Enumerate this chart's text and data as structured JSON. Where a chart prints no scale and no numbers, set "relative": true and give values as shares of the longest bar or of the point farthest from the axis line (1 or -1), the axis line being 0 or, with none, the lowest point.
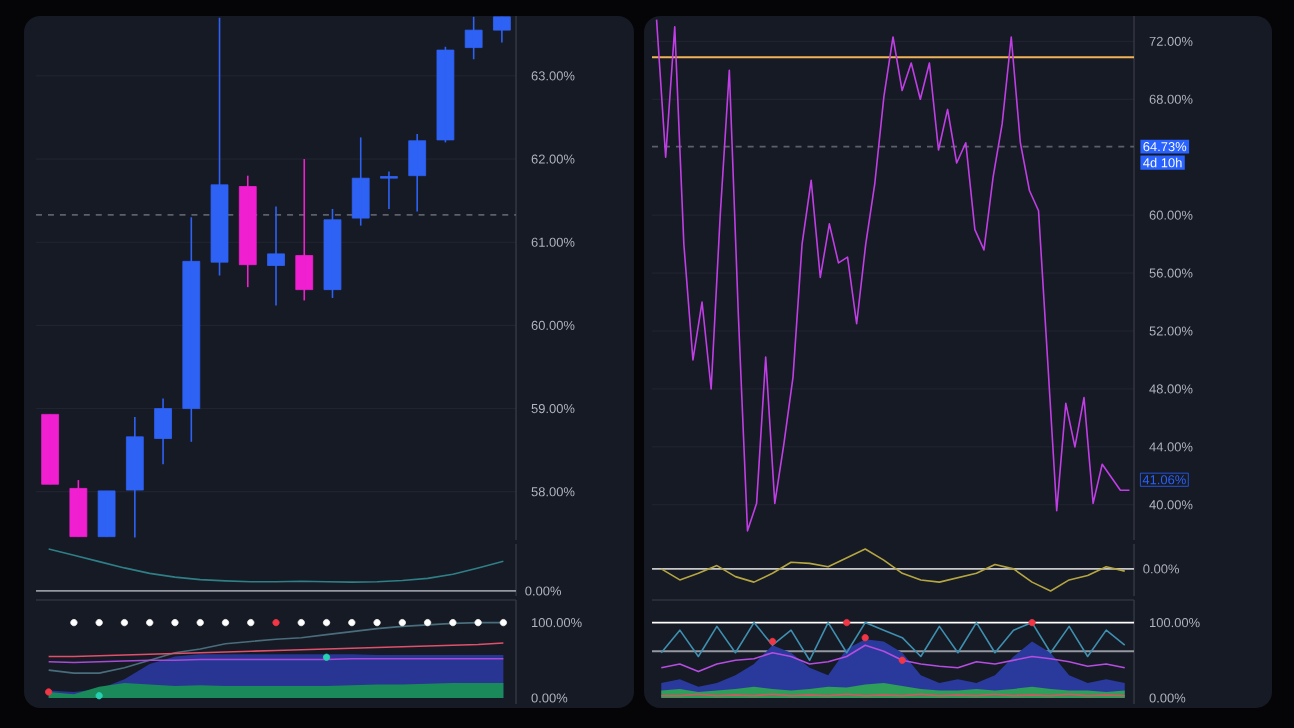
{
  "chart_data": [
    {
      "type": "candlestick",
      "categories": [
        null,
        null,
        null,
        null,
        null,
        null,
        null,
        null,
        null,
        null,
        null,
        null,
        null,
        null,
        null,
        null,
        null
      ],
      "ohlc": [
        [
          58.93,
          58.93,
          58.09,
          58.09
        ],
        [
          58.04,
          58.14,
          57.46,
          57.46
        ],
        [
          57.46,
          58.01,
          57.46,
          58.01
        ],
        [
          58.02,
          58.9,
          57.45,
          58.66
        ],
        [
          58.64,
          59.12,
          58.33,
          59.0
        ],
        [
          59.0,
          61.3,
          58.6,
          60.77
        ],
        [
          60.76,
          63.7,
          60.6,
          61.69
        ],
        [
          61.67,
          61.8,
          60.46,
          60.73
        ],
        [
          60.72,
          61.43,
          60.24,
          60.86
        ],
        [
          60.84,
          62.0,
          60.3,
          60.43
        ],
        [
          60.43,
          61.4,
          60.33,
          61.27
        ],
        [
          61.29,
          62.26,
          61.2,
          61.77
        ],
        [
          61.77,
          61.85,
          61.4,
          61.79
        ],
        [
          61.8,
          62.3,
          61.37,
          62.22
        ],
        [
          62.23,
          63.35,
          62.2,
          63.31
        ],
        [
          63.34,
          63.71,
          63.2,
          63.55
        ],
        [
          63.55,
          63.71,
          63.4,
          63.71
        ]
      ],
      "colors": [
        "#f01fd0",
        "#f01fd0",
        "#2e62f5",
        "#2e62f5",
        "#2e62f5",
        "#2e62f5",
        "#2e62f5",
        "#f01fd0",
        "#2e62f5",
        "#f01fd0",
        "#2e62f5",
        "#2e62f5",
        "#2e62f5",
        "#2e62f5",
        "#2e62f5",
        "#2e62f5",
        "#2e62f5"
      ],
      "ylim": [
        57.42,
        63.72
      ],
      "yticks": [
        {
          "value": 58,
          "label": "58.00%"
        },
        {
          "value": 59,
          "label": "59.00%"
        },
        {
          "value": 60,
          "label": "60.00%"
        },
        {
          "value": 61,
          "label": "61.00%"
        },
        {
          "value": 62,
          "label": "62.00%"
        },
        {
          "value": 63,
          "label": "63.00%"
        }
      ],
      "grid": "y",
      "ref_lines": [
        {
          "axis": "y",
          "value": 61.33,
          "line_style": "dashed",
          "color": "#5d606b"
        }
      ]
    },
    {
      "type": "line",
      "relative": true,
      "categories": [
        null,
        null,
        null,
        null,
        null,
        null,
        null,
        null,
        null,
        null,
        null,
        null,
        null,
        null,
        null,
        null,
        null,
        null,
        null
      ],
      "series": [
        {
          "color": "#2f7f86",
          "values": [
            1,
            0.85,
            0.7,
            0.55,
            0.42,
            0.33,
            0.27,
            0.24,
            0.22,
            0.22,
            0.23,
            0.22,
            0.21,
            0.22,
            0.25,
            0.3,
            0.4,
            0.55,
            0.71
          ]
        }
      ],
      "ref_lines": [
        {
          "axis": "y",
          "value": 0,
          "label": "0.00%",
          "color": "#9598a1"
        }
      ]
    },
    {
      "type": "line",
      "categories": [
        null,
        null,
        null,
        null,
        null,
        null,
        null,
        null,
        null,
        null,
        null,
        null,
        null,
        null,
        null,
        null,
        null,
        null,
        null
      ],
      "ylim": [
        -8,
        130
      ],
      "yticks": [
        {
          "value": 0,
          "label": "0.00%"
        },
        {
          "value": 100,
          "label": "100.00%"
        }
      ],
      "series": [
        {
          "type": "area",
          "color": "#283593",
          "values": [
            10,
            8,
            12,
            25,
            45,
            55,
            58,
            58,
            58,
            58,
            58,
            58,
            58,
            57,
            57,
            57,
            57,
            57,
            57
          ]
        },
        {
          "type": "area",
          "color": "#1b8a5a",
          "values": [
            8,
            5,
            15,
            20,
            18,
            16,
            17,
            16,
            16,
            16,
            16,
            16,
            17,
            18,
            18,
            19,
            20,
            20,
            20
          ]
        },
        {
          "color": "#4a6d7c",
          "values": [
            37,
            33,
            33,
            40,
            50,
            60,
            65,
            72,
            75,
            78,
            80,
            84,
            88,
            92,
            95,
            97,
            99,
            100,
            100
          ]
        },
        {
          "color": "#a64bd6",
          "values": [
            48,
            47,
            48,
            49,
            50,
            50,
            51,
            51,
            51,
            51,
            51,
            51,
            52,
            52,
            52,
            52,
            52,
            52,
            52
          ]
        },
        {
          "color": "#e0506a",
          "values": [
            55,
            55,
            56,
            57,
            58,
            59,
            60,
            61,
            62,
            63,
            64,
            65,
            66,
            67,
            68,
            69,
            70,
            71,
            73
          ]
        },
        {
          "type": "scatter",
          "marker": "circle",
          "color": "#ffffff",
          "values": [
            null,
            100,
            100,
            100,
            100,
            100,
            100,
            100,
            100,
            null,
            100,
            100,
            100,
            100,
            100,
            100,
            100,
            100,
            100
          ]
        },
        {
          "type": "scatter",
          "marker": "circle",
          "color": "#f23645",
          "values": [
            8,
            null,
            null,
            null,
            null,
            null,
            null,
            null,
            null,
            100,
            null,
            null,
            null,
            null,
            null,
            null,
            null,
            null,
            null
          ]
        },
        {
          "type": "scatter",
          "marker": "circle",
          "color": "#26d0b0",
          "values": [
            null,
            null,
            3,
            null,
            null,
            null,
            null,
            null,
            null,
            null,
            null,
            54,
            null,
            null,
            null,
            null,
            null,
            null,
            null
          ]
        }
      ]
    },
    {
      "type": "line",
      "categories": [
        null,
        null,
        null,
        null,
        null,
        null,
        null,
        null,
        null,
        null,
        null,
        null,
        null,
        null,
        null,
        null,
        null,
        null,
        null,
        null,
        null,
        null,
        null,
        null,
        null,
        null,
        null,
        null,
        null,
        null,
        null,
        null,
        null,
        null,
        null,
        null,
        null,
        null,
        null,
        null,
        null,
        null,
        null,
        null,
        null,
        null,
        null,
        null,
        null,
        null,
        null,
        null,
        null
      ],
      "series": [
        {
          "color": "#c13ee6",
          "values": [
            73.5,
            64,
            73,
            58,
            50,
            54,
            48,
            60,
            70,
            53,
            38.2,
            40.1,
            50.2,
            40.1,
            44.2,
            48.8,
            58,
            62.4,
            55.7,
            59.4,
            56.7,
            57.1,
            52.5,
            58,
            62.2,
            68.2,
            72.3,
            68.6,
            70.5,
            68,
            70.5,
            64.5,
            67.3,
            63.6,
            65,
            59,
            57.6,
            62.6,
            66.3,
            72.3,
            65,
            61.7,
            60.3,
            50,
            39.6,
            47,
            44,
            47.4,
            40.1,
            42.8,
            41.9,
            41,
            41
          ]
        }
      ],
      "ylim": [
        37.57,
        73.75
      ],
      "yticks": [
        {
          "value": 40,
          "label": "40.00%"
        },
        {
          "value": 44,
          "label": "44.00%"
        },
        {
          "value": 48,
          "label": "48.00%"
        },
        {
          "value": 52,
          "label": "52.00%"
        },
        {
          "value": 56,
          "label": "56.00%"
        },
        {
          "value": 60,
          "label": "60.00%"
        },
        {
          "value": 68,
          "label": "68.00%"
        },
        {
          "value": 72,
          "label": "72.00%"
        }
      ],
      "grid": "y",
      "ref_lines": [
        {
          "axis": "y",
          "value": 70.9,
          "color": "#f0b35a"
        },
        {
          "axis": "y",
          "value": 64.73,
          "label": "64.73%",
          "line_style": "dashed",
          "color": "#5d606b"
        }
      ],
      "annotations": [
        "4d 10h",
        "41.06%"
      ]
    },
    {
      "type": "line",
      "relative": true,
      "categories": [
        null,
        null,
        null,
        null,
        null,
        null,
        null,
        null,
        null,
        null,
        null,
        null,
        null,
        null,
        null,
        null,
        null,
        null,
        null,
        null,
        null,
        null,
        null,
        null,
        null,
        null
      ],
      "series": [
        {
          "color": "#b5a642",
          "values": [
            0,
            -0.5,
            -0.2,
            0.15,
            -0.35,
            -0.6,
            -0.2,
            0.3,
            0.25,
            0.1,
            0.5,
            0.9,
            0.4,
            -0.2,
            -0.5,
            -0.6,
            -0.4,
            -0.2,
            0.2,
            0,
            -0.6,
            -1,
            -0.5,
            -0.3,
            0.1,
            -0.1
          ]
        }
      ],
      "ref_lines": [
        {
          "axis": "y",
          "value": 0,
          "label": "0.00%",
          "color": "#c8c8c8"
        }
      ]
    },
    {
      "type": "line",
      "categories": [
        null,
        null,
        null,
        null,
        null,
        null,
        null,
        null,
        null,
        null,
        null,
        null,
        null,
        null,
        null,
        null,
        null,
        null,
        null,
        null,
        null,
        null,
        null,
        null,
        null,
        null
      ],
      "ylim": [
        -8,
        130
      ],
      "yticks": [
        {
          "value": 0,
          "label": "0.00%"
        },
        {
          "value": 100,
          "label": "100.00%"
        }
      ],
      "ref_lines": [
        {
          "axis": "y",
          "value": 100,
          "color": "#ffffff"
        },
        {
          "axis": "y",
          "value": 62,
          "color": "#9598a1"
        }
      ],
      "series": [
        {
          "type": "area",
          "color": "#2a3a9c",
          "values": [
            20,
            25,
            15,
            20,
            30,
            45,
            70,
            60,
            40,
            30,
            65,
            78,
            75,
            60,
            30,
            20,
            25,
            20,
            30,
            55,
            75,
            60,
            30,
            20,
            25,
            20
          ]
        },
        {
          "type": "area",
          "color": "#2e9e5a",
          "values": [
            10,
            12,
            8,
            10,
            12,
            15,
            12,
            10,
            12,
            15,
            14,
            18,
            20,
            16,
            12,
            10,
            10,
            12,
            10,
            12,
            15,
            12,
            10,
            10,
            8,
            10
          ]
        },
        {
          "color": "#3f8fb0",
          "values": [
            60,
            90,
            55,
            95,
            60,
            100,
            70,
            90,
            50,
            100,
            60,
            100,
            90,
            80,
            55,
            95,
            60,
            100,
            60,
            90,
            100,
            60,
            95,
            55,
            90,
            70
          ]
        },
        {
          "color": "#b44de0",
          "values": [
            40,
            45,
            35,
            45,
            50,
            52,
            60,
            55,
            45,
            48,
            55,
            70,
            62,
            50,
            45,
            42,
            40,
            48,
            45,
            50,
            55,
            52,
            48,
            42,
            45,
            40
          ]
        },
        {
          "color": "#e05060",
          "values": [
            3,
            3,
            5,
            3,
            4,
            3,
            5,
            3,
            4,
            3,
            5,
            3,
            4,
            3,
            5,
            3,
            4,
            3,
            5,
            3,
            4,
            3,
            5,
            3,
            4,
            3
          ]
        },
        {
          "type": "scatter",
          "marker": "circle",
          "color": "#f23645",
          "values": [
            null,
            null,
            null,
            null,
            null,
            null,
            75,
            null,
            null,
            null,
            100,
            80,
            null,
            50,
            null,
            null,
            null,
            null,
            null,
            null,
            100,
            null,
            null,
            null,
            null,
            null
          ]
        }
      ]
    }
  ]
}
